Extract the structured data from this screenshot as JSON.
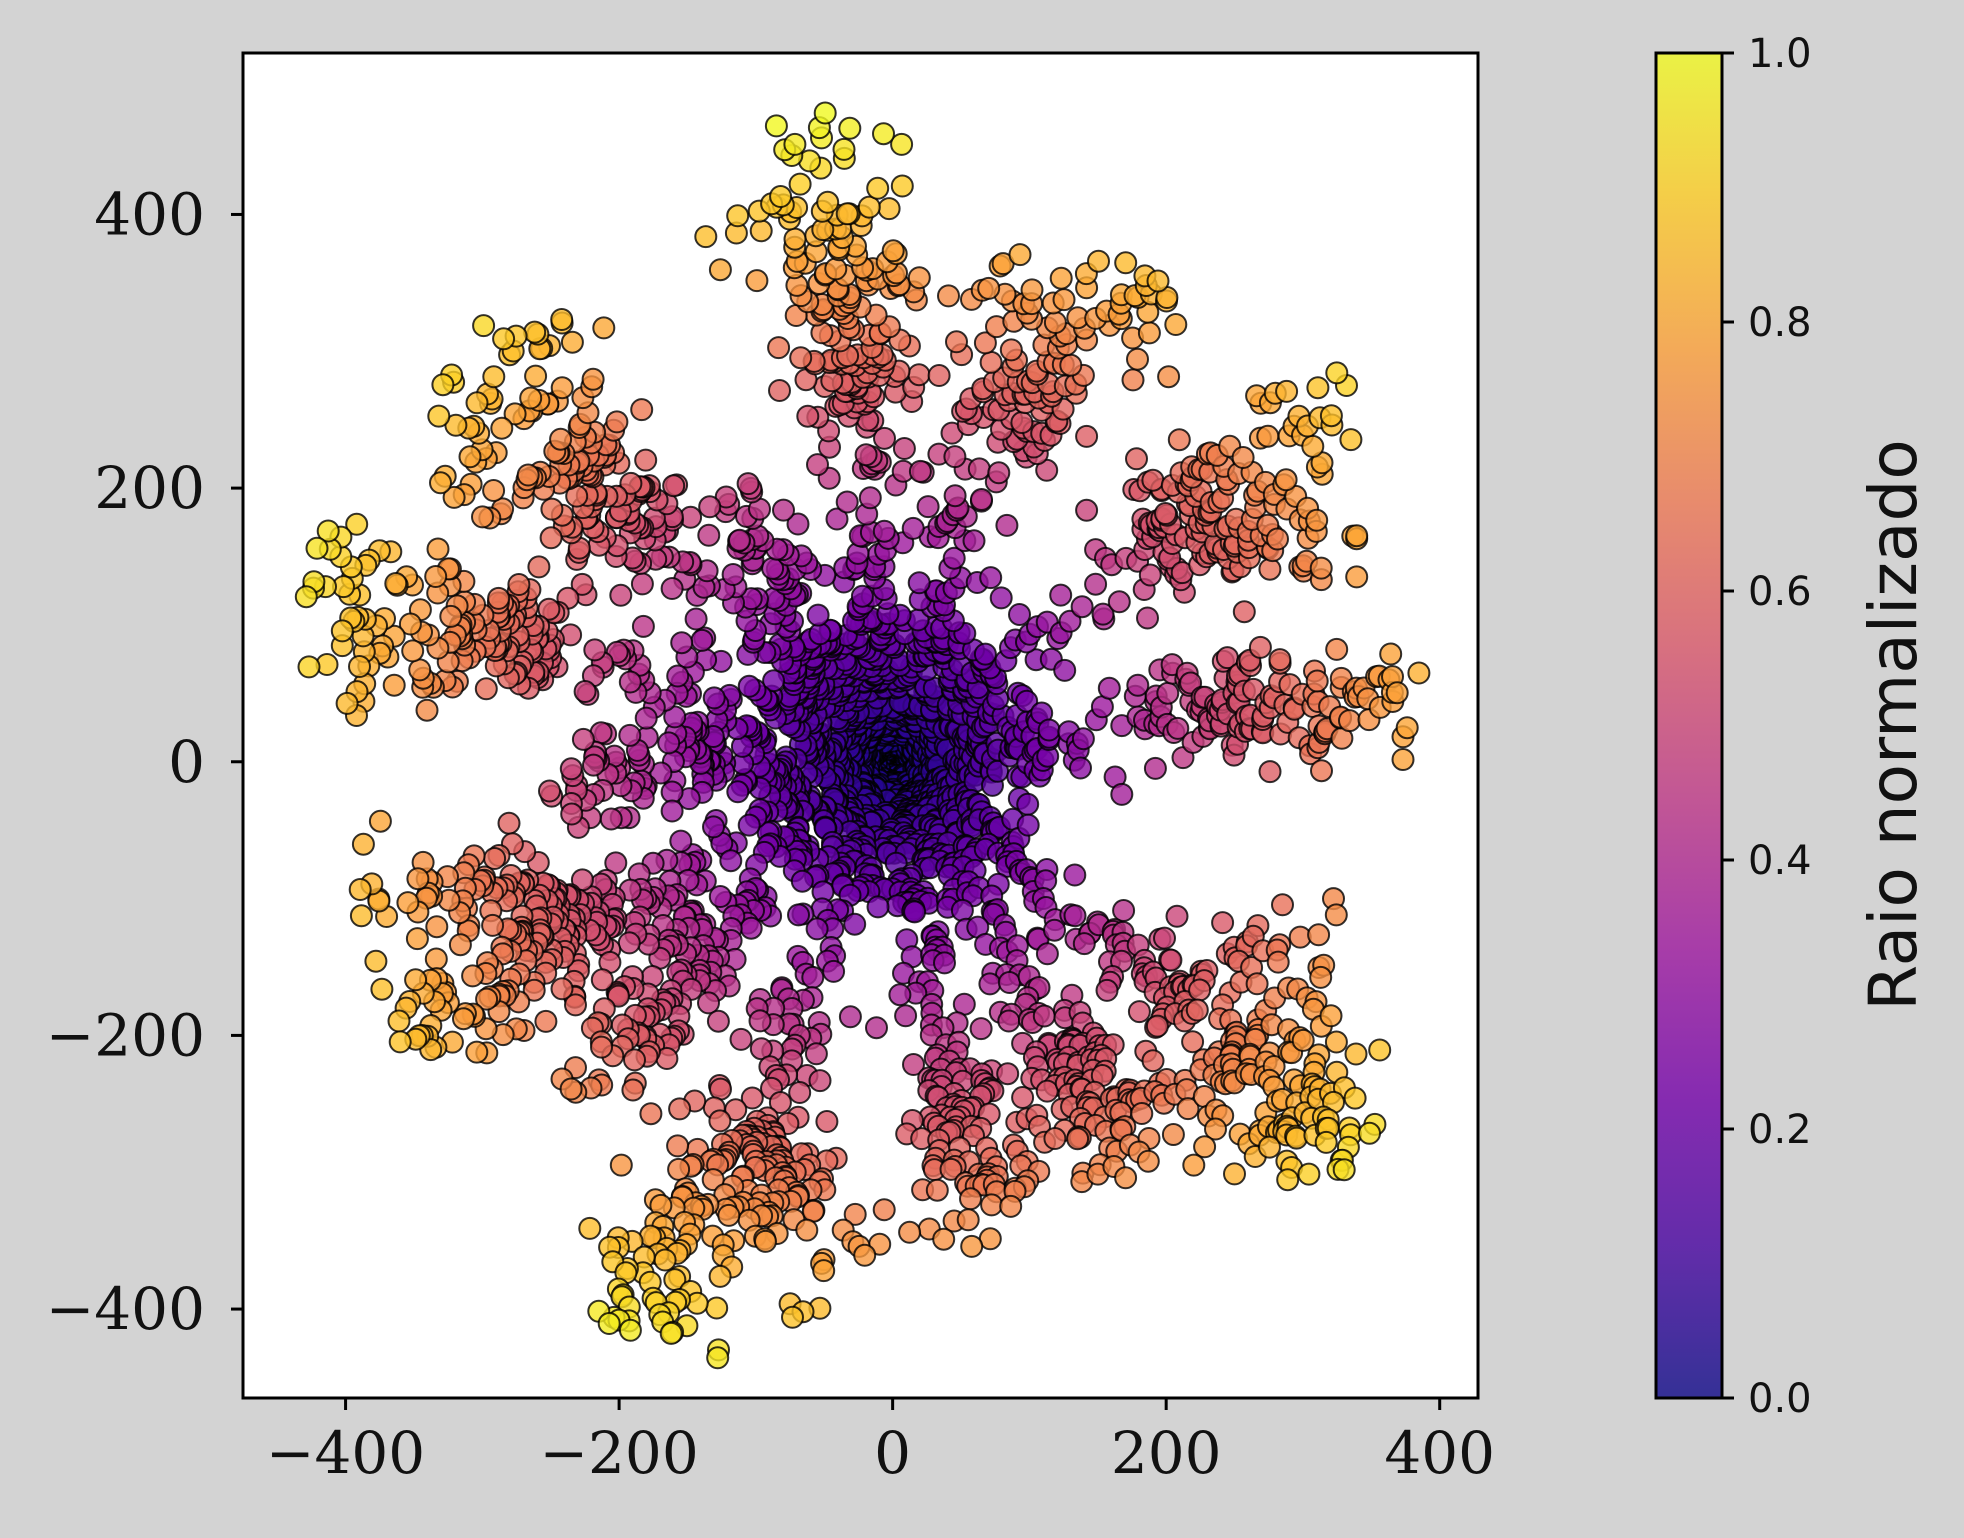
{
  "chart_data": {
    "type": "scatter",
    "title": "",
    "xlabel": "",
    "ylabel": "",
    "xlim": [
      -475,
      428
    ],
    "ylim": [
      -465,
      518
    ],
    "xticks": [
      -400,
      -200,
      0,
      200,
      400
    ],
    "yticks": [
      -400,
      -200,
      0,
      200,
      400
    ],
    "xtick_labels": [
      "−400",
      "−200",
      "0",
      "200",
      "400"
    ],
    "ytick_labels": [
      "−400",
      "−200",
      "0",
      "200",
      "400"
    ],
    "grid": false,
    "colormap": "plasma",
    "marker_edge_color": "#000000",
    "colorbar": {
      "label": "Raio normalizado",
      "range": [
        0.0,
        1.0
      ],
      "ticks": [
        0.0,
        0.2,
        0.4,
        0.6,
        0.8,
        1.0
      ],
      "tick_labels": [
        "0.0",
        "0.2",
        "0.4",
        "0.6",
        "0.8",
        "1.0"
      ],
      "colors": [
        "#0d0887",
        "#46039f",
        "#7201a8",
        "#9c179e",
        "#bd3786",
        "#d8576b",
        "#ed7953",
        "#fb9f3a",
        "#fdca26",
        "#f0f921"
      ]
    },
    "color_value": "normalized radius = distance from (0,0) / 475",
    "arms": [
      {
        "tip": [
          -50,
          470
        ],
        "branches": [
          [
            -90,
            410
          ],
          [
            30,
            375
          ],
          [
            -10,
            300
          ]
        ]
      },
      {
        "tip": [
          110,
          362
        ],
        "branches": [
          [
            190,
            360
          ],
          [
            140,
            250
          ]
        ]
      },
      {
        "tip": [
          335,
          272
        ],
        "branches": [
          [
            240,
            225
          ],
          [
            340,
            160
          ],
          [
            280,
            140
          ]
        ]
      },
      {
        "tip": [
          385,
          58
        ],
        "branches": [
          [
            320,
            20
          ],
          [
            250,
            90
          ],
          [
            270,
            60
          ]
        ]
      },
      {
        "tip": [
          340,
          -290
        ],
        "branches": [
          [
            340,
            -240
          ],
          [
            280,
            -300
          ],
          [
            330,
            -140
          ]
        ]
      },
      {
        "tip": [
          180,
          -305
        ],
        "branches": [
          [
            230,
            -280
          ],
          [
            150,
            -270
          ],
          [
            120,
            -180
          ]
        ]
      },
      {
        "tip": [
          70,
          -360
        ],
        "branches": [
          [
            100,
            -305
          ],
          [
            45,
            -320
          ],
          [
            40,
            -260
          ]
        ]
      },
      {
        "tip": [
          -165,
          -420
        ],
        "branches": [
          [
            -215,
            -400
          ],
          [
            -30,
            -385
          ],
          [
            -120,
            -330
          ],
          [
            -60,
            -340
          ]
        ]
      },
      {
        "tip": [
          -235,
          -240
        ],
        "branches": [
          [
            -190,
            -215
          ],
          [
            -130,
            -170
          ],
          [
            -175,
            -110
          ]
        ]
      },
      {
        "tip": [
          -360,
          -200
        ],
        "branches": [
          [
            -320,
            -180
          ],
          [
            -390,
            -85
          ],
          [
            -300,
            -55
          ]
        ]
      },
      {
        "tip": [
          -220,
          10
        ],
        "branches": [
          [
            -250,
            -40
          ],
          [
            -160,
            0
          ]
        ]
      },
      {
        "tip": [
          -430,
          155
        ],
        "branches": [
          [
            -430,
            80
          ],
          [
            -330,
            60
          ],
          [
            -250,
            80
          ]
        ]
      },
      {
        "tip": [
          -320,
          300
        ],
        "branches": [
          [
            -260,
            320
          ],
          [
            -190,
            225
          ],
          [
            -330,
            200
          ],
          [
            -240,
            150
          ]
        ]
      },
      {
        "tip": [
          -120,
          195
        ],
        "branches": [
          [
            -60,
            160
          ]
        ]
      }
    ],
    "n_points": 3400
  }
}
